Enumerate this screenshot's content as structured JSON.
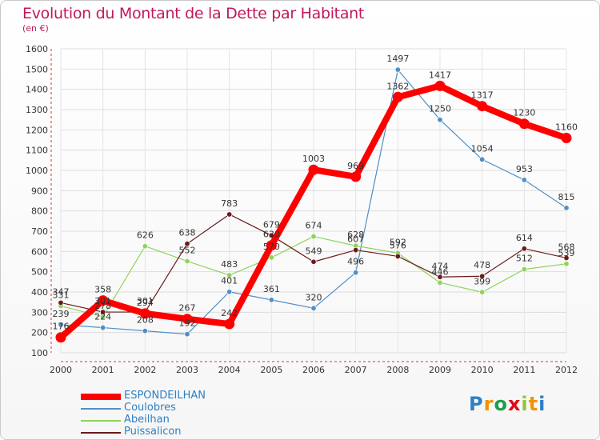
{
  "title": "Evolution du Montant de la Dette par Habitant",
  "subtitle": "(en €)",
  "brand": "Proxiti",
  "brand_colors": [
    "#2e7fc2",
    "#f39200",
    "#1e9e4a",
    "#e30613",
    "#8dc63f",
    "#f39200",
    "#2e7fc2"
  ],
  "legend_position": "bottom-left",
  "chart_data": {
    "type": "line",
    "x": [
      "2000",
      "2001",
      "2002",
      "2003",
      "2004",
      "2005",
      "2006",
      "2007",
      "2008",
      "2009",
      "2010",
      "2011",
      "2012"
    ],
    "ylim": [
      100,
      1600
    ],
    "yticks": [
      100,
      200,
      300,
      400,
      500,
      600,
      700,
      800,
      900,
      1000,
      1100,
      1200,
      1300,
      1400,
      1500,
      1600
    ],
    "grid": true,
    "series": [
      {
        "name": "ESPONDEILHAN",
        "color": "#ff0000",
        "values": [
          176,
          358,
          294,
          267,
          242,
          630,
          1003,
          969,
          1362,
          1417,
          1317,
          1230,
          1160
        ]
      },
      {
        "name": "Coulobres",
        "color": "#4f8fc7",
        "values": [
          239,
          224,
          208,
          192,
          401,
          361,
          320,
          496,
          1497,
          1250,
          1054,
          953,
          815
        ]
      },
      {
        "name": "Abeilhan",
        "color": "#8fd35a",
        "values": [
          331,
          278,
          626,
          552,
          483,
          570,
          674,
          628,
          592,
          446,
          399,
          512,
          539
        ]
      },
      {
        "name": "Puissalicon",
        "color": "#6b1a1a",
        "values": [
          347,
          301,
          301,
          638,
          783,
          679,
          549,
          607,
          576,
          474,
          478,
          614,
          568
        ]
      }
    ]
  }
}
